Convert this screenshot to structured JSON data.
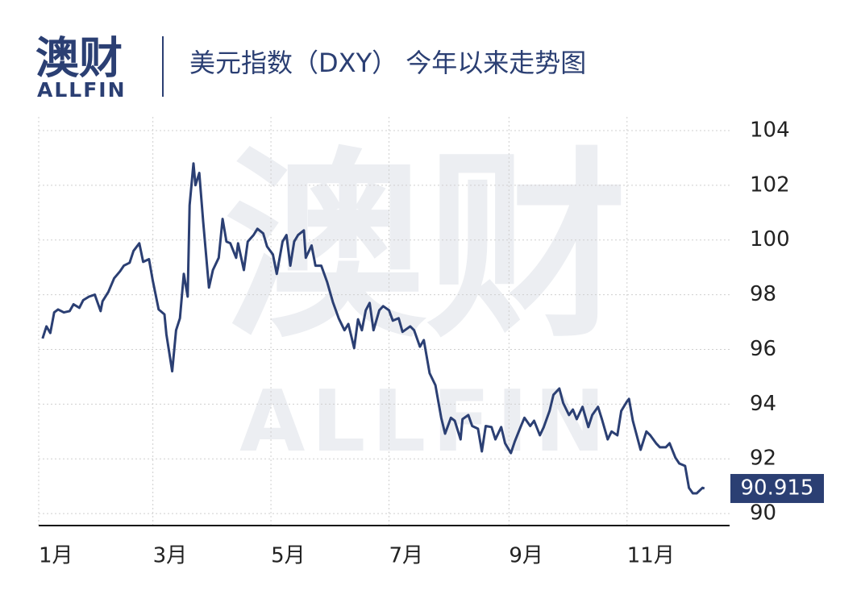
{
  "logo": {
    "name": "澳财",
    "brand": "ALLFIN"
  },
  "chart_data": {
    "type": "line",
    "title": "美元指数（DXY） 今年以来走势图",
    "color": "#2b3f73",
    "grid": true,
    "x": [
      2,
      4,
      6,
      8,
      10,
      13,
      16,
      18,
      21,
      23,
      26,
      29,
      32,
      33,
      36,
      39,
      42,
      44,
      47,
      49,
      52,
      54,
      57,
      59,
      62,
      65,
      66,
      69,
      71,
      73,
      75,
      77,
      78,
      80,
      81,
      83,
      85,
      87,
      88,
      90,
      93,
      95,
      97,
      99,
      102,
      103,
      106,
      108,
      111,
      113,
      116,
      118,
      121,
      123,
      126,
      128,
      130,
      132,
      134,
      137,
      138,
      141,
      143,
      146,
      149,
      152,
      155,
      158,
      160,
      163,
      165,
      167,
      169,
      171,
      173,
      176,
      178,
      181,
      183,
      186,
      188,
      192,
      194,
      197,
      199,
      202,
      205,
      208,
      210,
      213,
      215,
      218,
      219,
      222,
      224,
      227,
      229,
      231,
      234,
      236,
      239,
      241,
      244,
      246,
      249,
      251,
      254,
      256,
      259,
      261,
      264,
      266,
      269,
      271,
      274,
      276,
      278,
      281,
      284,
      286,
      289,
      291,
      294,
      296,
      299,
      301,
      304,
      305,
      307,
      309,
      311,
      314,
      316,
      319,
      321,
      324,
      326,
      329,
      331,
      334,
      336,
      338,
      340,
      343,
      344
    ],
    "values": [
      96.4,
      96.84,
      96.6,
      97.35,
      97.46,
      97.35,
      97.4,
      97.65,
      97.52,
      97.8,
      97.93,
      98.0,
      97.4,
      97.76,
      98.1,
      98.6,
      98.85,
      99.06,
      99.17,
      99.6,
      99.88,
      99.2,
      99.3,
      98.5,
      97.46,
      97.28,
      96.55,
      95.2,
      96.7,
      97.14,
      98.76,
      97.93,
      101.27,
      102.8,
      102.0,
      102.45,
      100.68,
      99.06,
      98.26,
      98.9,
      99.35,
      100.77,
      99.94,
      99.88,
      99.35,
      99.88,
      98.9,
      99.94,
      100.18,
      100.41,
      100.24,
      99.76,
      99.47,
      98.76,
      99.94,
      100.18,
      99.06,
      99.94,
      100.18,
      100.35,
      99.35,
      99.8,
      99.06,
      99.06,
      98.47,
      97.73,
      97.14,
      96.7,
      96.93,
      96.05,
      97.1,
      96.7,
      97.43,
      97.7,
      96.7,
      97.43,
      97.58,
      97.43,
      97.05,
      97.14,
      96.64,
      96.84,
      96.7,
      96.1,
      96.34,
      95.13,
      94.69,
      93.5,
      92.92,
      93.5,
      93.39,
      92.71,
      93.45,
      93.6,
      93.2,
      93.1,
      92.27,
      93.2,
      93.16,
      92.71,
      93.16,
      92.57,
      92.21,
      92.63,
      93.16,
      93.5,
      93.2,
      93.39,
      92.86,
      93.16,
      93.75,
      94.34,
      94.57,
      94.04,
      93.6,
      93.8,
      93.45,
      93.9,
      93.16,
      93.6,
      93.9,
      93.45,
      92.71,
      93.0,
      92.86,
      93.75,
      94.1,
      94.19,
      93.39,
      92.86,
      92.33,
      93.0,
      92.86,
      92.57,
      92.42,
      92.42,
      92.57,
      92.04,
      91.83,
      91.74,
      90.94,
      90.74,
      90.74,
      90.94,
      90.915
    ],
    "xlim": [
      0,
      357
    ],
    "xticks": [
      {
        "value": 0,
        "label": "1月"
      },
      {
        "value": 59,
        "label": "3月"
      },
      {
        "value": 120,
        "label": "5月"
      },
      {
        "value": 181,
        "label": "7月"
      },
      {
        "value": 243,
        "label": "9月"
      },
      {
        "value": 304,
        "label": "11月"
      }
    ],
    "ylim": [
      89.56,
      104.5
    ],
    "yticks": [
      90,
      92,
      94,
      96,
      98,
      100,
      102,
      104
    ]
  }
}
